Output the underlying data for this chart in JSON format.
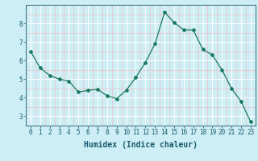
{
  "x": [
    0,
    1,
    2,
    3,
    4,
    5,
    6,
    7,
    8,
    9,
    10,
    11,
    12,
    13,
    14,
    15,
    16,
    17,
    18,
    19,
    20,
    21,
    22,
    23
  ],
  "y": [
    6.5,
    5.6,
    5.2,
    5.0,
    4.9,
    4.3,
    4.4,
    4.45,
    4.1,
    3.95,
    4.4,
    5.1,
    5.9,
    6.9,
    8.6,
    8.05,
    7.65,
    7.65,
    6.6,
    6.3,
    5.5,
    4.5,
    3.8,
    2.7
  ],
  "line_color": "#1a7a5e",
  "marker": "D",
  "marker_size": 2.0,
  "xlabel": "Humidex (Indice chaleur)",
  "bg_color": "#cceef4",
  "grid_color_major": "#ffffff",
  "grid_color_minor": "#f0c0c8",
  "xlim": [
    -0.5,
    23.5
  ],
  "ylim": [
    2.5,
    9.0
  ],
  "yticks": [
    3,
    4,
    5,
    6,
    7,
    8
  ],
  "xticks": [
    0,
    1,
    2,
    3,
    4,
    5,
    6,
    7,
    8,
    9,
    10,
    11,
    12,
    13,
    14,
    15,
    16,
    17,
    18,
    19,
    20,
    21,
    22,
    23
  ],
  "tick_fontsize": 5.5,
  "xlabel_fontsize": 7.0,
  "linewidth": 0.9
}
